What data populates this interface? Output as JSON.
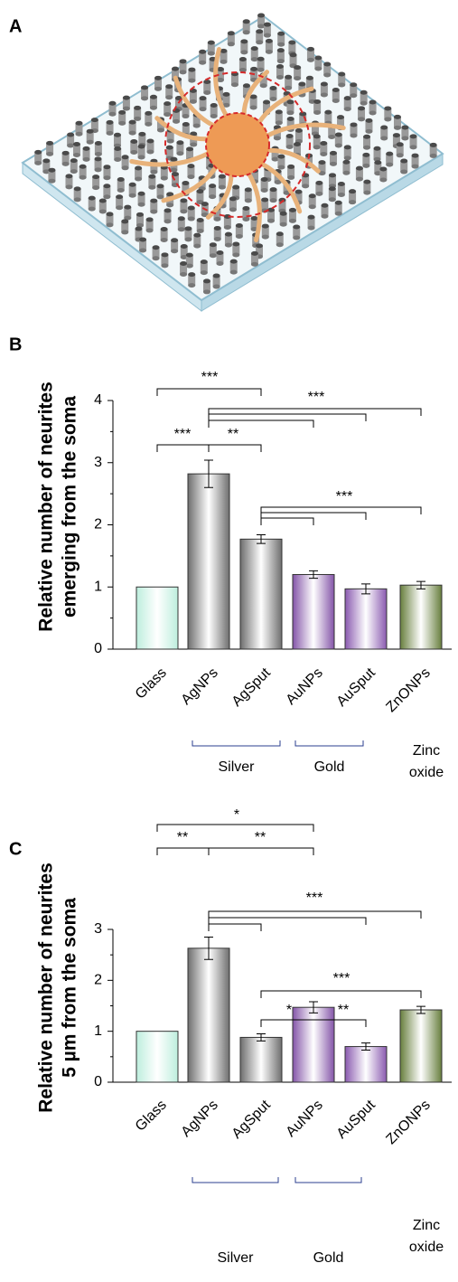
{
  "panel_a": {
    "label": "A"
  },
  "chart_data": [
    {
      "type": "bar",
      "panel_label": "B",
      "y_label": [
        "Relative number of neurites",
        "emerging from the soma"
      ],
      "categories": [
        "Glass",
        "AgNPs",
        "AgSput",
        "AuNPs",
        "AuSput",
        "ZnONPs"
      ],
      "values": [
        1.0,
        2.82,
        1.77,
        1.2,
        0.97,
        1.03
      ],
      "errors": [
        0,
        0.22,
        0.07,
        0.06,
        0.08,
        0.06
      ],
      "colors": [
        "#bdeedd",
        "#6e6e6e",
        "#6e6e6e",
        "#8455a8",
        "#8a5ab0",
        "#687f3e"
      ],
      "ylim": [
        0,
        4
      ],
      "yticks": [
        0,
        1,
        2,
        3,
        4
      ],
      "significance": [
        "***",
        "***",
        "**",
        "***",
        "***"
      ],
      "groups": [
        {
          "label": [
            "Silver"
          ]
        },
        {
          "label": [
            "Gold"
          ]
        },
        {
          "label": [
            "Zinc",
            "oxide"
          ]
        }
      ]
    },
    {
      "type": "bar",
      "panel_label": "C",
      "y_label": [
        "Relative number of neurites",
        "5 µm from the soma"
      ],
      "categories": [
        "Glass",
        "AgNPs",
        "AgSput",
        "AuNPs",
        "AuSput",
        "ZnONPs"
      ],
      "values": [
        1.0,
        2.63,
        0.88,
        1.47,
        0.7,
        1.42
      ],
      "errors": [
        0,
        0.22,
        0.07,
        0.11,
        0.07,
        0.07
      ],
      "colors": [
        "#bdeedd",
        "#6e6e6e",
        "#6e6e6e",
        "#8455a8",
        "#8a5ab0",
        "#687f3e"
      ],
      "ylim": [
        0,
        3
      ],
      "yticks": [
        0,
        1,
        2,
        3
      ],
      "significance": [
        "*",
        "**",
        "**",
        "***",
        "***",
        "*",
        "**"
      ],
      "groups": [
        {
          "label": [
            "Silver"
          ]
        },
        {
          "label": [
            "Gold"
          ]
        },
        {
          "label": [
            "Zinc",
            "oxide"
          ]
        }
      ]
    }
  ]
}
